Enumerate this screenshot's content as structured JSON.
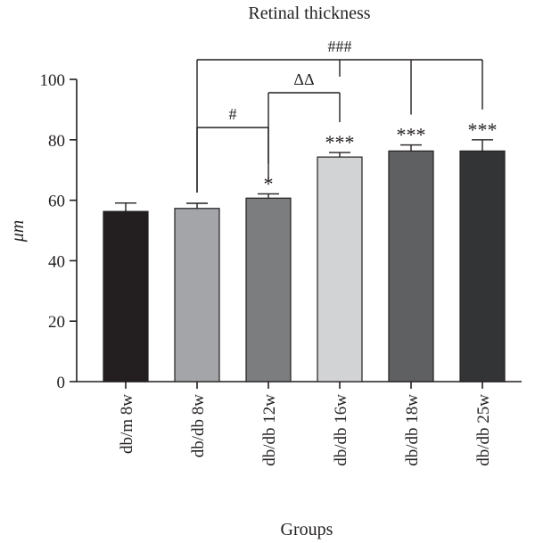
{
  "chart_data": {
    "type": "bar",
    "title": "Retinal thickness",
    "xlabel": "Groups",
    "ylabel": "μm",
    "ylim": [
      0,
      100
    ],
    "yticks": [
      0,
      20,
      40,
      60,
      80,
      100
    ],
    "categories": [
      "db/m 8w",
      "db/db 8w",
      "db/db 12w",
      "db/db 16w",
      "db/db 18w",
      "db/db 25w"
    ],
    "values": [
      56.3,
      57.3,
      60.7,
      74.3,
      76.3,
      76.3
    ],
    "errors": [
      2.8,
      1.7,
      1.4,
      1.5,
      2.0,
      3.7
    ],
    "colors": [
      "#231f20",
      "#a3a5a8",
      "#7b7d7f",
      "#d2d3d4",
      "#5f6062",
      "#333435"
    ],
    "significance": [
      "",
      "",
      "*",
      "***",
      "***",
      "***"
    ],
    "comparisons": [
      {
        "label": "#",
        "from": 1,
        "to": [
          2
        ]
      },
      {
        "label": "ΔΔ",
        "from": 2,
        "to": [
          3
        ]
      },
      {
        "label": "###",
        "from": 1,
        "to": [
          3,
          4,
          5
        ]
      }
    ]
  }
}
